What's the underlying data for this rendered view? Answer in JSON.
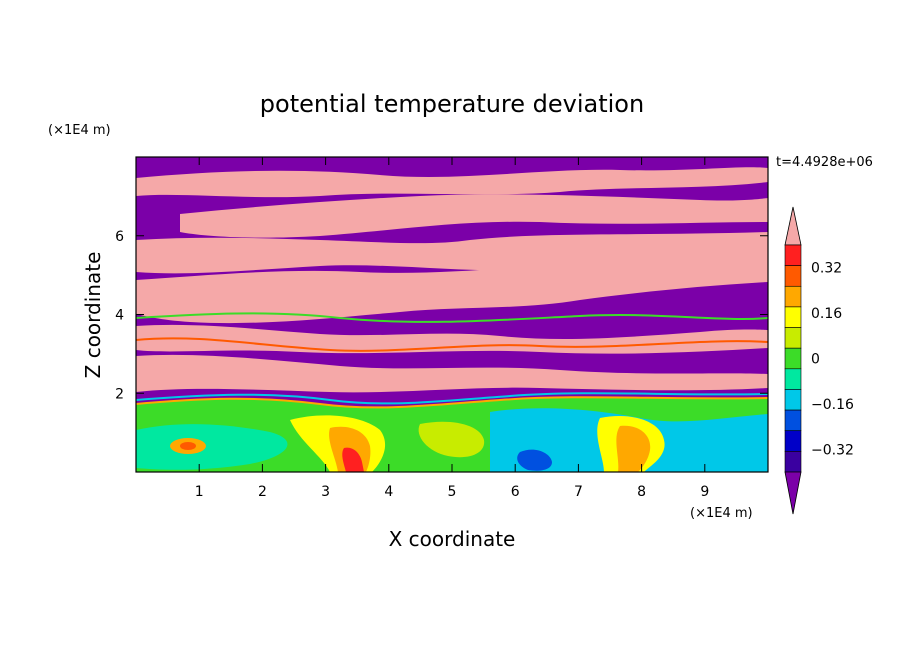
{
  "chart_data": {
    "type": "heatmap",
    "title": "potential temperature deviation",
    "xlabel": "X coordinate",
    "ylabel": "Z coordinate",
    "x_unit": "(×1E4 m)",
    "y_unit": "(×1E4 m)",
    "time_label": "t=4.4928e+06",
    "xlim": [
      0,
      10
    ],
    "ylim": [
      0,
      8
    ],
    "x_ticks": [
      1,
      2,
      3,
      4,
      5,
      6,
      7,
      8,
      9
    ],
    "y_ticks": [
      2,
      4,
      6
    ],
    "colorbar": {
      "levels": [
        -0.4,
        -0.32,
        -0.24,
        -0.16,
        -0.08,
        0,
        0.08,
        0.16,
        0.24,
        0.32,
        0.4
      ],
      "tick_labels": [
        "0.32",
        "0.16",
        "0",
        "−0.16",
        "−0.32"
      ],
      "tick_values": [
        0.32,
        0.16,
        0,
        -0.16,
        -0.32
      ],
      "colors": [
        "#7b00a8",
        "#3a00a0",
        "#0000c8",
        "#0050e0",
        "#00c8e8",
        "#00e8a0",
        "#3cdc28",
        "#c8ec00",
        "#ffff00",
        "#ffa800",
        "#ff5a00",
        "#ff2020",
        "#f5a8a8"
      ]
    },
    "bands": [
      {
        "z_range": [
          0,
          2
        ],
        "description": "low-level mixed layer, mostly green/cyan with yellow-red plumes near x=3.5 and x=8"
      },
      {
        "z_range": [
          2,
          8
        ],
        "description": "alternating purple (negative) and pink (positive) sheared layers"
      }
    ]
  }
}
